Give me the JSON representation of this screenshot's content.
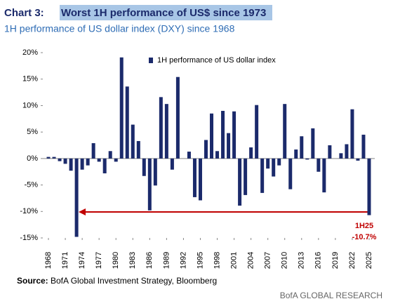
{
  "chart_data": {
    "type": "bar",
    "title_prefix": "Chart 3:",
    "title": "Worst 1H performance of US$ since 1973",
    "subtitle": "1H performance of US dollar index (DXY) since 1968",
    "x": [
      1968,
      1969,
      1970,
      1971,
      1972,
      1973,
      1974,
      1975,
      1976,
      1977,
      1978,
      1979,
      1980,
      1981,
      1982,
      1983,
      1984,
      1985,
      1986,
      1987,
      1988,
      1989,
      1990,
      1991,
      1992,
      1993,
      1994,
      1995,
      1996,
      1997,
      1998,
      1999,
      2000,
      2001,
      2002,
      2003,
      2004,
      2005,
      2006,
      2007,
      2008,
      2009,
      2010,
      2011,
      2012,
      2013,
      2014,
      2015,
      2016,
      2017,
      2018,
      2019,
      2020,
      2021,
      2022,
      2023,
      2024,
      2025
    ],
    "series": [
      {
        "name": "1H performance of US dollar index",
        "color": "#1b2a6b",
        "values": [
          0.3,
          0.3,
          -0.5,
          -1.0,
          -2.3,
          -14.8,
          -2.1,
          -1.3,
          2.9,
          -0.6,
          -2.8,
          1.4,
          -0.6,
          19.1,
          13.6,
          6.4,
          3.3,
          -3.3,
          -9.8,
          -5.1,
          11.6,
          10.3,
          -2.1,
          15.4,
          0,
          1.3,
          -7.3,
          -7.9,
          3.5,
          8.5,
          1.4,
          9.0,
          4.8,
          8.9,
          -8.9,
          -6.9,
          2.1,
          10.1,
          -6.5,
          -1.9,
          -3.4,
          -1.3,
          10.3,
          -5.8,
          1.7,
          4.2,
          -0.2,
          5.7,
          -2.5,
          -6.4,
          2.5,
          0,
          1.0,
          2.7,
          9.3,
          -0.4,
          4.5,
          -10.7
        ]
      }
    ],
    "xlim": [
      1967,
      2026
    ],
    "xticks": [
      1968,
      1971,
      1974,
      1977,
      1980,
      1983,
      1986,
      1989,
      1992,
      1995,
      1998,
      2001,
      2004,
      2007,
      2010,
      2013,
      2016,
      2019,
      2022,
      2025
    ],
    "ylim": [
      -15,
      20
    ],
    "yticks": [
      {
        "value": -15,
        "label": "-15%"
      },
      {
        "value": -10,
        "label": "-10%"
      },
      {
        "value": -5,
        "label": "-5%"
      },
      {
        "value": 0,
        "label": "0%"
      },
      {
        "value": 5,
        "label": "5%"
      },
      {
        "value": 10,
        "label": "10%"
      },
      {
        "value": 15,
        "label": "15%"
      },
      {
        "value": 20,
        "label": "20%"
      }
    ],
    "annotations": [
      "1H25",
      "-10.7%"
    ],
    "source_label": "Source:",
    "source": "BofA Global Investment Strategy, Bloomberg",
    "footer": "BofA GLOBAL RESEARCH"
  }
}
